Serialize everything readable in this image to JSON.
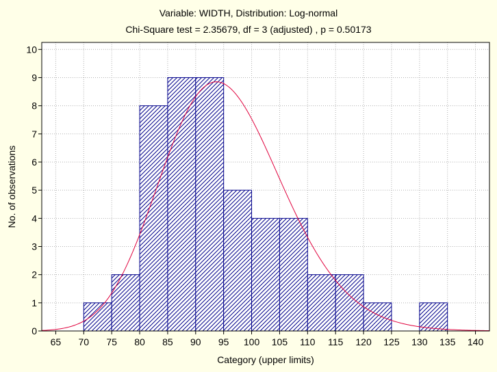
{
  "chart_data": {
    "type": "bar",
    "title": "Variable: WIDTH, Distribution: Log-normal",
    "subtitle": "Chi-Square test = 2.35679, df = 3 (adjusted) , p = 0.50173",
    "xlabel": "Category (upper limits)",
    "ylabel": "No. of observations",
    "xlim": [
      62.5,
      142.5
    ],
    "ylim": [
      0,
      10.25
    ],
    "x_ticks": [
      65,
      70,
      75,
      80,
      85,
      90,
      95,
      100,
      105,
      110,
      115,
      120,
      125,
      130,
      135,
      140
    ],
    "y_ticks": [
      0,
      1,
      2,
      3,
      4,
      5,
      6,
      7,
      8,
      9,
      10
    ],
    "grid": true,
    "bin_width": 5,
    "categories": [
      70,
      75,
      80,
      85,
      90,
      95,
      100,
      105,
      110,
      115,
      120,
      125,
      130,
      135
    ],
    "values": [
      0,
      1,
      2,
      8,
      9,
      9,
      5,
      4,
      4,
      2,
      2,
      1,
      0,
      1
    ],
    "fitted_curve": {
      "distribution": "Log-normal",
      "log_mu": 4.5532,
      "log_sigma": 0.1147,
      "n": 48,
      "x_range": [
        62.5,
        142.5
      ]
    }
  },
  "colors": {
    "background": "#ffffe8",
    "plot_area": "#ffffff",
    "bar_stroke": "#00008b",
    "bar_hatch": "#00008b",
    "curve": "#e0003c",
    "grid": "#b0b0b0"
  }
}
